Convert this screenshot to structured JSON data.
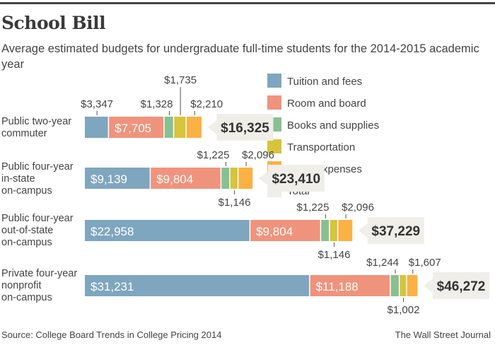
{
  "title": "School Bill",
  "subtitle": "Average estimated budgets for undergraduate full-time students for the 2014-2015 academic year",
  "source": "Source: College Board Trends in College Pricing 2014",
  "credit": "The Wall Street Journal",
  "chart_data": {
    "type": "bar",
    "stacked": true,
    "orientation": "horizontal",
    "title": "School Bill",
    "categories": [
      [
        "Public two-year",
        "commuter"
      ],
      [
        "Public four-year",
        "in-state",
        "on-campus"
      ],
      [
        "Public four-year",
        "out-of-state",
        "on-campus"
      ],
      [
        "Private four-year",
        "nonprofit",
        "on-campus"
      ]
    ],
    "series": [
      {
        "name": "Tuition and fees",
        "color": "#7fa6bf",
        "values": [
          3347,
          9139,
          22958,
          31231
        ],
        "labels": [
          "$3,347",
          "$9,139",
          "$22,958",
          "$31,231"
        ]
      },
      {
        "name": "Room and board",
        "color": "#f0937c",
        "values": [
          7705,
          9804,
          9804,
          11188
        ],
        "labels": [
          "$7,705",
          "$9,804",
          "$9,804",
          "$11,188"
        ]
      },
      {
        "name": "Books and supplies",
        "color": "#88c091",
        "values": [
          1328,
          1225,
          1225,
          1244
        ],
        "labels": [
          "$1,328",
          "$1,225",
          "$1,225",
          "$1,244"
        ]
      },
      {
        "name": "Transportation",
        "color": "#d8c33c",
        "values": [
          1735,
          1146,
          1146,
          1002
        ],
        "labels": [
          "$1,735",
          "$1,146",
          "$1,146",
          "$1,002"
        ]
      },
      {
        "name": "Other expenses",
        "color": "#fbb144",
        "values": [
          2210,
          2096,
          2096,
          1607
        ],
        "labels": [
          "$2,210",
          "$2,096",
          "$2,096",
          "$1,607"
        ]
      }
    ],
    "totals": {
      "name": "Total",
      "color": "#efeee9",
      "values": [
        16325,
        23410,
        37229,
        46272
      ],
      "labels": [
        "$16,325",
        "$23,410",
        "$37,229",
        "$46,272"
      ]
    },
    "legend": "top-right",
    "grid": false
  }
}
